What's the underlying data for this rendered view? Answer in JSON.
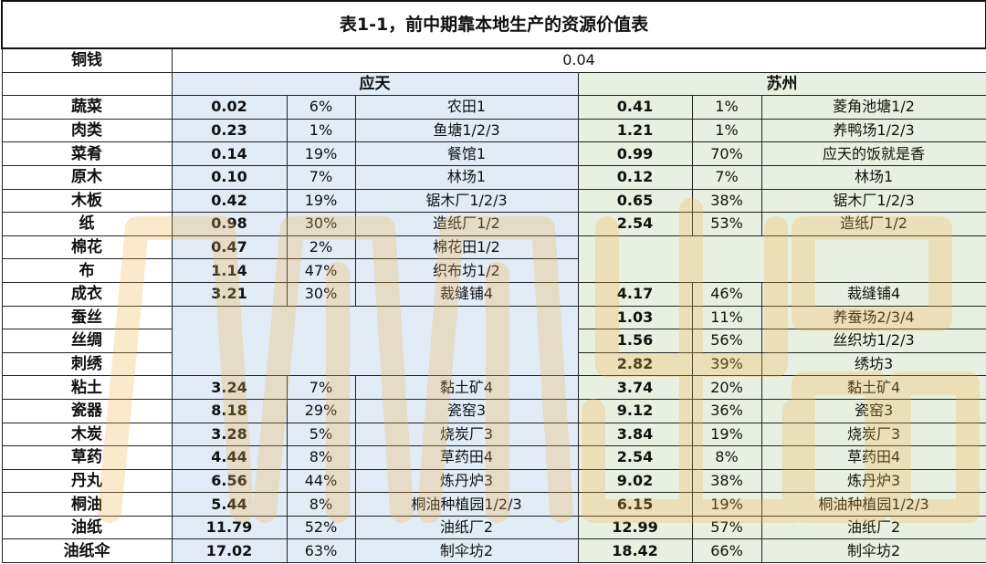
{
  "title": "表1-1，前中期靠本地生产的资源价值表",
  "copper": {
    "label": "铜钱",
    "value": "0.04"
  },
  "cities": [
    "应天",
    "苏州"
  ],
  "watermark_color": "#f2b24a",
  "colors": {
    "yingtian_bg": "#dce9f6",
    "suzhou_bg": "#e4efdc"
  },
  "rows": [
    {
      "name": "蔬菜",
      "yt": [
        "0.02",
        "6%",
        "农田1"
      ],
      "sz": [
        "0.41",
        "1%",
        "菱角池塘1/2"
      ]
    },
    {
      "name": "肉类",
      "yt": [
        "0.23",
        "1%",
        "鱼塘1/2/3"
      ],
      "sz": [
        "1.21",
        "1%",
        "养鸭场1/2/3"
      ]
    },
    {
      "name": "菜肴",
      "yt": [
        "0.14",
        "19%",
        "餐馆1"
      ],
      "sz": [
        "0.99",
        "70%",
        "应天的饭就是香"
      ]
    },
    {
      "name": "原木",
      "yt": [
        "0.10",
        "7%",
        "林场1"
      ],
      "sz": [
        "0.12",
        "7%",
        "林场1"
      ]
    },
    {
      "name": "木板",
      "yt": [
        "0.42",
        "19%",
        "锯木厂1/2/3"
      ],
      "sz": [
        "0.65",
        "38%",
        "锯木厂1/2/3"
      ]
    },
    {
      "name": "纸",
      "yt": [
        "0.98",
        "30%",
        "造纸厂1/2"
      ],
      "sz": [
        "2.54",
        "53%",
        "造纸厂1/2"
      ]
    },
    {
      "name": "棉花",
      "yt": [
        "0.47",
        "2%",
        "棉花田1/2"
      ],
      "sz": null
    },
    {
      "name": "布",
      "yt": [
        "1.14",
        "47%",
        "织布坊1/2"
      ],
      "sz": null
    },
    {
      "name": "成衣",
      "yt": [
        "3.21",
        "30%",
        "裁缝铺4"
      ],
      "sz": [
        "4.17",
        "46%",
        "裁缝铺4"
      ]
    },
    {
      "name": "蚕丝",
      "yt": null,
      "sz": [
        "1.03",
        "11%",
        "养蚕场2/3/4"
      ]
    },
    {
      "name": "丝绸",
      "yt": null,
      "sz": [
        "1.56",
        "56%",
        "丝织坊1/2/3"
      ]
    },
    {
      "name": "刺绣",
      "yt": null,
      "sz": [
        "2.82",
        "39%",
        "绣坊3"
      ]
    },
    {
      "name": "粘土",
      "yt": [
        "3.24",
        "7%",
        "黏土矿4"
      ],
      "sz": [
        "3.74",
        "20%",
        "黏土矿4"
      ]
    },
    {
      "name": "瓷器",
      "yt": [
        "8.18",
        "29%",
        "瓷窑3"
      ],
      "sz": [
        "9.12",
        "36%",
        "瓷窑3"
      ]
    },
    {
      "name": "木炭",
      "yt": [
        "3.28",
        "5%",
        "烧炭厂3"
      ],
      "sz": [
        "3.84",
        "19%",
        "烧炭厂3"
      ]
    },
    {
      "name": "草药",
      "yt": [
        "4.44",
        "8%",
        "草药田4"
      ],
      "sz": [
        "2.54",
        "8%",
        "草药田4"
      ]
    },
    {
      "name": "丹丸",
      "yt": [
        "6.56",
        "44%",
        "炼丹炉3"
      ],
      "sz": [
        "9.02",
        "38%",
        "炼丹炉3"
      ]
    },
    {
      "name": "桐油",
      "yt": [
        "5.44",
        "8%",
        "桐油种植园1/2/3"
      ],
      "sz": [
        "6.15",
        "19%",
        "桐油种植园1/2/3"
      ]
    },
    {
      "name": "油纸",
      "yt": [
        "11.79",
        "52%",
        "油纸厂2"
      ],
      "sz": [
        "12.99",
        "57%",
        "油纸厂2"
      ]
    },
    {
      "name": "油纸伞",
      "yt": [
        "17.02",
        "63%",
        "制伞坊2"
      ],
      "sz": [
        "18.42",
        "66%",
        "制伞坊2"
      ]
    }
  ]
}
